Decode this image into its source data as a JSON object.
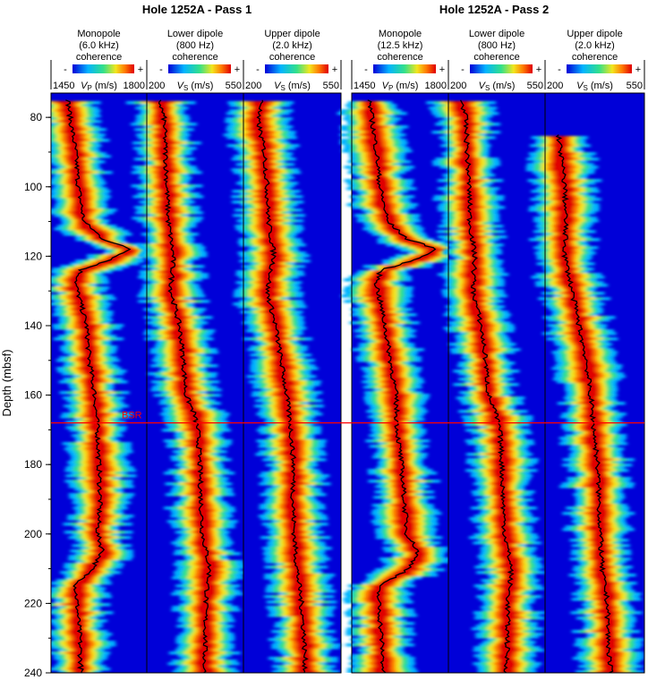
{
  "chart_data": {
    "type": "heatmap",
    "ylabel": "Depth (mbsf)",
    "ylim": [
      73,
      240
    ],
    "yticks": [
      80,
      100,
      120,
      140,
      160,
      180,
      200,
      220,
      240
    ],
    "grid": false,
    "color_scale": {
      "low_label": "-",
      "high_label": "+",
      "colors": [
        "#0000d8",
        "#00b4ff",
        "#33e08a",
        "#f2e61e",
        "#ff7a00",
        "#e00000"
      ]
    },
    "reference_lines": [
      {
        "label": "BSR",
        "depth": 168,
        "color": "#ff0000"
      }
    ],
    "panels": [
      {
        "title": "Hole 1252A - Pass 1",
        "tracks": [
          {
            "title": [
              "Monopole",
              "(6.0 kHz)",
              "coherence"
            ],
            "scale_min": "1450",
            "scale_max": "1800",
            "quantity": "V",
            "subscript": "P",
            "unit": "(m/s)",
            "range": [
              1450,
              1800
            ],
            "curve": {
              "depth": [
                75,
                80,
                90,
                100,
                110,
                115,
                118,
                121,
                124,
                128,
                140,
                150,
                160,
                170,
                180,
                190,
                200,
                205,
                210,
                215,
                220,
                230,
                240
              ],
              "values": [
                1512,
                1520,
                1540,
                1550,
                1570,
                1640,
                1740,
                1670,
                1560,
                1540,
                1580,
                1590,
                1610,
                1620,
                1625,
                1630,
                1620,
                1640,
                1600,
                1540,
                1545,
                1555,
                1560
              ]
            }
          },
          {
            "title": [
              "Lower dipole",
              "(800 Hz)",
              "coherence"
            ],
            "scale_min": "200",
            "scale_max": "550",
            "quantity": "V",
            "subscript": "S",
            "unit": "(m/s)",
            "range": [
              200,
              550
            ],
            "curve": {
              "depth": [
                75,
                80,
                90,
                100,
                110,
                120,
                130,
                140,
                150,
                160,
                165,
                170,
                180,
                190,
                200,
                210,
                220,
                230,
                240
              ],
              "values": [
                245,
                262,
                268,
                273,
                278,
                296,
                288,
                318,
                333,
                342,
                370,
                385,
                392,
                396,
                402,
                428,
                413,
                412,
                408
              ]
            }
          },
          {
            "title": [
              "Upper dipole",
              "(2.0 kHz)",
              "coherence"
            ],
            "scale_min": "200",
            "scale_max": "550",
            "quantity": "V",
            "subscript": "S",
            "unit": "(m/s)",
            "range": [
              200,
              550
            ],
            "curve": {
              "depth": [
                75,
                80,
                90,
                100,
                110,
                120,
                130,
                140,
                150,
                160,
                170,
                180,
                190,
                200,
                210,
                220,
                230,
                240
              ],
              "values": [
                270,
                250,
                275,
                285,
                290,
                310,
                285,
                315,
                335,
                355,
                370,
                380,
                378,
                382,
                392,
                408,
                418,
                422
              ]
            }
          }
        ]
      },
      {
        "title": "Hole 1252A - Pass 2",
        "tracks": [
          {
            "title": [
              "Monopole",
              "(12.5 kHz)",
              "coherence"
            ],
            "scale_min": "1450",
            "scale_max": "1800",
            "quantity": "V",
            "subscript": "P",
            "unit": "(m/s)",
            "range": [
              1450,
              1800
            ],
            "curve": {
              "depth": [
                75,
                80,
                90,
                100,
                110,
                115,
                118,
                121,
                124,
                128,
                140,
                150,
                160,
                170,
                180,
                190,
                200,
                205,
                210,
                215,
                220,
                230,
                240
              ],
              "values": [
                1515,
                1522,
                1540,
                1552,
                1580,
                1650,
                1760,
                1680,
                1555,
                1540,
                1570,
                1590,
                1610,
                1615,
                1630,
                1640,
                1650,
                1690,
                1660,
                1545,
                1548,
                1558,
                1565
              ]
            }
          },
          {
            "title": [
              "Lower dipole",
              "(800 Hz)",
              "coherence"
            ],
            "scale_min": "200",
            "scale_max": "550",
            "quantity": "V",
            "subscript": "S",
            "unit": "(m/s)",
            "range": [
              200,
              550
            ],
            "curve": {
              "depth": [
                75,
                80,
                90,
                100,
                110,
                120,
                130,
                140,
                150,
                160,
                165,
                170,
                180,
                190,
                200,
                210,
                220,
                230,
                240
              ],
              "values": [
                248,
                262,
                268,
                275,
                278,
                295,
                290,
                318,
                335,
                345,
                370,
                386,
                394,
                398,
                404,
                428,
                415,
                414,
                410
              ]
            }
          },
          {
            "title": [
              "Upper dipole",
              "(2.0 kHz)",
              "coherence"
            ],
            "scale_min": "200",
            "scale_max": "550",
            "quantity": "V",
            "subscript": "S",
            "unit": "(m/s)",
            "range": [
              200,
              550
            ],
            "curve": {
              "depth": [
                85,
                90,
                100,
                110,
                120,
                130,
                140,
                150,
                160,
                170,
                180,
                190,
                200,
                210,
                220,
                230,
                240
              ],
              "values": [
                248,
                255,
                270,
                272,
                270,
                295,
                320,
                345,
                360,
                372,
                385,
                390,
                395,
                400,
                420,
                422,
                430
              ]
            }
          }
        ]
      }
    ]
  }
}
